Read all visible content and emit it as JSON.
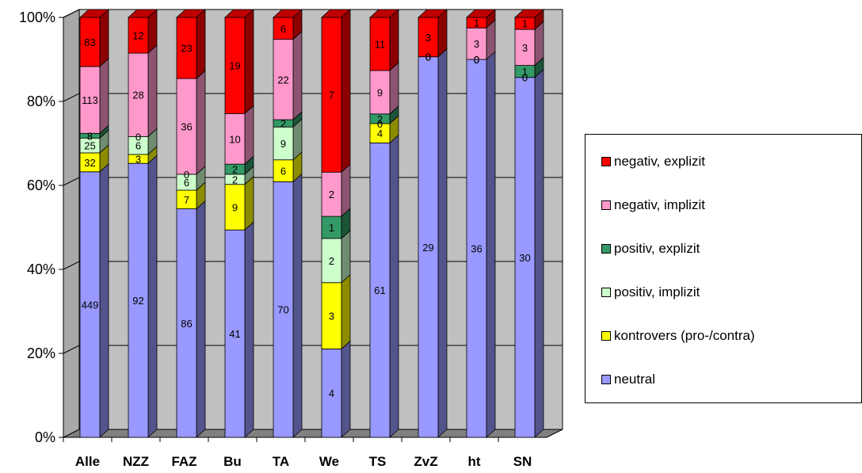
{
  "chart_data": {
    "type": "bar",
    "stacked": "percent",
    "three_d": true,
    "categories": [
      "Alle",
      "NZZ",
      "FAZ",
      "Bu",
      "TA",
      "We",
      "TS",
      "ZvZ",
      "ht",
      "SN"
    ],
    "y_ticks": [
      "0%",
      "20%",
      "40%",
      "60%",
      "80%",
      "100%"
    ],
    "ylim": [
      0,
      100
    ],
    "grid": true,
    "legend_position": "right",
    "series": [
      {
        "name": "neutral",
        "color": "#9999ff",
        "values": [
          449,
          92,
          86,
          41,
          70,
          4,
          61,
          29,
          36,
          30
        ],
        "labels": [
          "449",
          "92",
          "86",
          "41",
          "70",
          "4",
          "61",
          "29",
          "36",
          "30"
        ]
      },
      {
        "name": "kontrovers (pro-/contra)",
        "color": "#ffff00",
        "values": [
          32,
          3,
          7,
          9,
          6,
          3,
          4,
          0,
          0,
          0
        ],
        "labels": [
          "32",
          "3",
          "7",
          "9",
          "6",
          "3",
          "4",
          "0",
          "0",
          "0"
        ]
      },
      {
        "name": "positiv, implizit",
        "color": "#ccffcc",
        "values": [
          25,
          6,
          6,
          2,
          9,
          2,
          0,
          0,
          0,
          0
        ],
        "labels": [
          "25",
          "6",
          "6",
          "2",
          "9",
          "2",
          "0",
          "0",
          "0",
          "0"
        ]
      },
      {
        "name": "positiv, explizit",
        "color": "#339966",
        "values": [
          8,
          0,
          0,
          2,
          2,
          1,
          2,
          0,
          0,
          1
        ],
        "labels": [
          "8",
          "0",
          "0",
          "2",
          "2",
          "1",
          "2",
          "0",
          "0",
          "1"
        ]
      },
      {
        "name": "negativ, implizit",
        "color": "#ff99cc",
        "values": [
          113,
          28,
          36,
          10,
          22,
          2,
          9,
          0,
          3,
          3
        ],
        "labels": [
          "113",
          "28",
          "36",
          "10",
          "22",
          "2",
          "9",
          "",
          "3",
          "3"
        ]
      },
      {
        "name": "negativ, explizit",
        "color": "#ff0000",
        "values": [
          83,
          12,
          23,
          19,
          6,
          7,
          11,
          3,
          1,
          1
        ],
        "labels": [
          "83",
          "12",
          "23",
          "19",
          "6",
          "7",
          "11",
          "3",
          "1",
          "1"
        ]
      }
    ]
  }
}
